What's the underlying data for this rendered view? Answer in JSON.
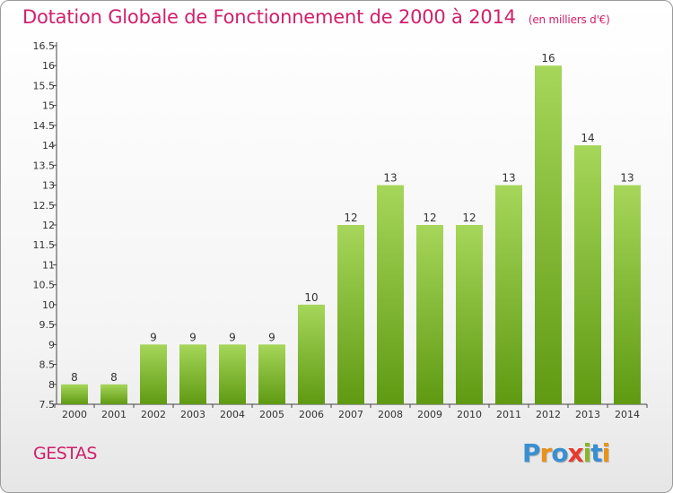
{
  "header": {
    "title": "Dotation Globale de Fonctionnement de 2000 à 2014",
    "subtitle": "(en milliers d'€)"
  },
  "footer": {
    "commune": "GESTAS",
    "logo_text": "Proxiti",
    "logo_colors": [
      "#3a8fd1",
      "#e8921a",
      "#3a8fd1",
      "#e83a2e",
      "#8ab52a",
      "#3a8fd1",
      "#e8921a"
    ]
  },
  "colors": {
    "bar_light": "#a6d65a",
    "bar_dark": "#5f9a12",
    "title": "#d0206c"
  },
  "chart_data": {
    "type": "bar",
    "categories": [
      "2000",
      "2001",
      "2002",
      "2003",
      "2004",
      "2005",
      "2006",
      "2007",
      "2008",
      "2009",
      "2010",
      "2011",
      "2012",
      "2013",
      "2014"
    ],
    "values": [
      8,
      8,
      9,
      9,
      9,
      9,
      10,
      12,
      13,
      12,
      12,
      13,
      16,
      14,
      13
    ],
    "value_labels": [
      "8",
      "8",
      "9",
      "9",
      "9",
      "9",
      "10",
      "12",
      "13",
      "12",
      "12",
      "13",
      "16",
      "14",
      "13"
    ],
    "ylim": [
      7.5,
      16.5
    ],
    "yticks": [
      "7.5",
      "8",
      "8.5",
      "9",
      "9.5",
      "10",
      "10.5",
      "11",
      "11.5",
      "12",
      "12.5",
      "13",
      "13.5",
      "14",
      "14.5",
      "15",
      "15.5",
      "16",
      "16.5"
    ],
    "grid": false,
    "legend": "none"
  }
}
